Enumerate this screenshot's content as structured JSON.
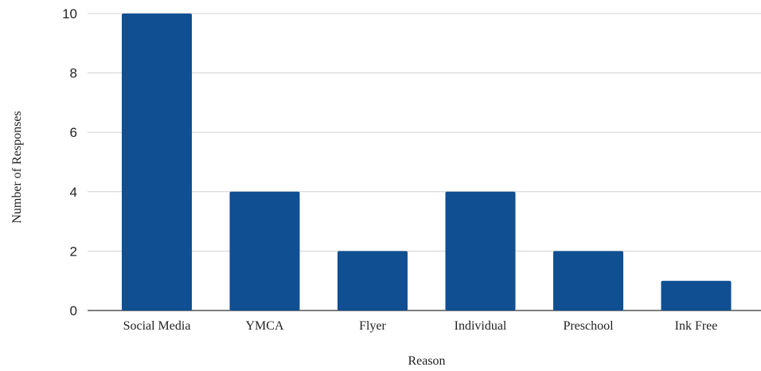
{
  "chart_data": {
    "type": "bar",
    "title": "",
    "xlabel": "Reason",
    "ylabel": "Number of Responses",
    "categories": [
      "Social Media",
      "YMCA",
      "Flyer",
      "Individual",
      "Preschool",
      "Ink Free"
    ],
    "values": [
      10,
      4,
      2,
      4,
      2,
      1
    ],
    "ylim": [
      0,
      10
    ],
    "yticks": [
      0,
      2,
      4,
      6,
      8,
      10
    ],
    "grid": true,
    "bar_color": "#0f4f92"
  }
}
